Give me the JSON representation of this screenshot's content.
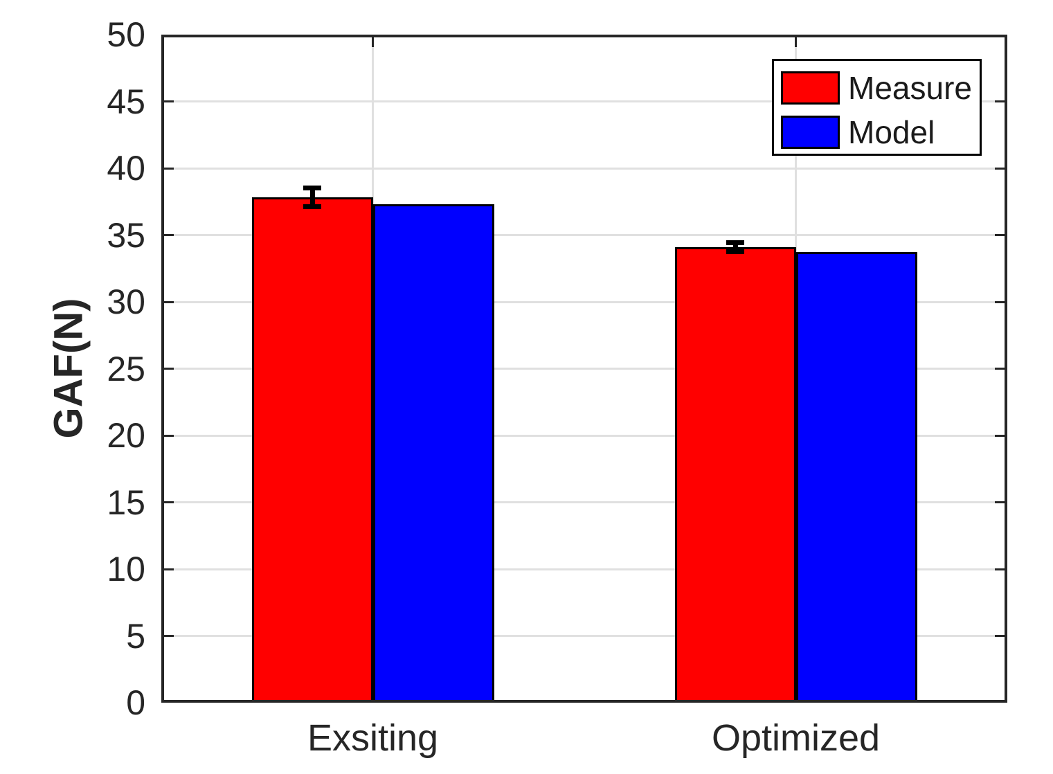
{
  "chart_data": {
    "type": "bar",
    "title": "",
    "ylabel": "GAF(N)",
    "xlabel": "",
    "categories": [
      "Exsiting",
      "Optimized"
    ],
    "series": [
      {
        "name": "Measure",
        "color": "#FF0000",
        "values": [
          37.8,
          34.1
        ],
        "errors": [
          0.7,
          0.35
        ]
      },
      {
        "name": "Model",
        "color": "#0000FF",
        "values": [
          37.3,
          33.75
        ],
        "errors": null
      }
    ],
    "ylim": [
      0,
      50
    ],
    "yticks": [
      0,
      5,
      10,
      15,
      20,
      25,
      30,
      35,
      40,
      45,
      50
    ],
    "grid": true,
    "legend_position": "top-right",
    "colors": {
      "axis": "#262626",
      "grid": "#E0E0E0",
      "bar_edge": "#000000",
      "error_bar": "#000000"
    }
  }
}
